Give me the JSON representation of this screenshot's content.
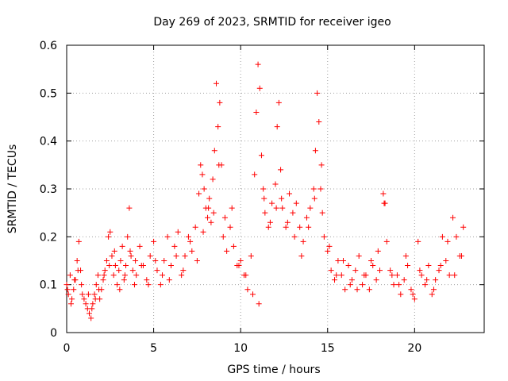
{
  "chart_data": {
    "type": "scatter",
    "title": "Day 269 of 2023, SRMTID for receiver igeo",
    "xlabel": "GPS time / hours",
    "ylabel": "SRMTID / TECUs",
    "xlim": [
      0,
      24
    ],
    "ylim": [
      0,
      0.6
    ],
    "xticks": [
      0,
      5,
      10,
      15,
      20
    ],
    "yticks": [
      0,
      0.1,
      0.2,
      0.3,
      0.4,
      0.5,
      0.6
    ],
    "xtick_labels": [
      "0",
      "5",
      "10",
      "15",
      "20"
    ],
    "ytick_labels": [
      "0",
      "0.1",
      "0.2",
      "0.3",
      "0.4",
      "0.5",
      "0.6"
    ],
    "grid": true,
    "marker": "+",
    "color": "#ff0000",
    "series": [
      {
        "name": "SRMTID",
        "x": [
          0.0,
          0.1,
          0.2,
          0.3,
          0.4,
          0.5,
          0.6,
          0.7,
          0.8,
          0.9,
          1.0,
          1.1,
          1.2,
          1.3,
          1.4,
          1.5,
          1.6,
          1.7,
          1.8,
          1.9,
          2.0,
          2.1,
          2.2,
          2.3,
          2.4,
          2.5,
          2.6,
          2.7,
          2.8,
          2.9,
          3.0,
          3.1,
          3.2,
          3.3,
          3.4,
          3.5,
          3.6,
          3.7,
          3.8,
          3.9,
          4.0,
          4.2,
          4.4,
          4.6,
          4.8,
          5.0,
          5.2,
          5.4,
          5.6,
          5.8,
          6.0,
          6.2,
          6.4,
          6.6,
          6.8,
          7.0,
          7.2,
          7.4,
          7.6,
          7.7,
          7.8,
          7.9,
          8.0,
          8.1,
          8.2,
          8.3,
          8.4,
          8.5,
          8.6,
          8.7,
          8.8,
          8.9,
          9.0,
          9.2,
          9.4,
          9.6,
          9.8,
          10.0,
          10.2,
          10.4,
          10.6,
          10.8,
          10.9,
          11.0,
          11.1,
          11.2,
          11.3,
          11.4,
          11.6,
          11.8,
          12.0,
          12.1,
          12.2,
          12.3,
          12.4,
          12.6,
          12.8,
          13.0,
          13.2,
          13.4,
          13.6,
          13.8,
          14.0,
          14.2,
          14.3,
          14.4,
          14.5,
          14.6,
          14.7,
          14.8,
          15.0,
          15.2,
          15.4,
          15.6,
          15.8,
          16.0,
          16.2,
          16.4,
          16.6,
          16.8,
          17.0,
          17.2,
          17.4,
          17.6,
          17.8,
          18.0,
          18.2,
          18.3,
          18.4,
          18.6,
          18.8,
          19.0,
          19.2,
          19.4,
          19.6,
          19.8,
          20.0,
          20.2,
          20.4,
          20.6,
          20.8,
          21.0,
          21.2,
          21.4,
          21.6,
          21.8,
          22.0,
          22.2,
          22.4,
          22.6,
          22.8,
          0.05,
          0.25,
          0.45,
          0.65,
          0.85,
          1.25,
          1.45,
          1.65,
          1.85,
          2.15,
          2.45,
          2.75,
          3.05,
          3.35,
          3.65,
          3.95,
          4.3,
          4.7,
          5.1,
          5.5,
          5.9,
          6.3,
          6.7,
          7.1,
          7.5,
          7.85,
          8.15,
          8.45,
          8.75,
          9.1,
          9.5,
          9.9,
          10.3,
          10.7,
          11.05,
          11.35,
          11.7,
          12.05,
          12.35,
          12.7,
          13.1,
          13.5,
          13.9,
          14.25,
          14.65,
          15.1,
          15.5,
          15.9,
          16.3,
          16.7,
          17.1,
          17.5,
          17.9,
          18.25,
          18.7,
          19.1,
          19.5,
          19.9,
          20.3,
          20.7,
          21.1,
          21.5,
          21.9,
          22.3,
          22.7
        ],
        "y": [
          0.1,
          0.08,
          0.12,
          0.07,
          0.09,
          0.11,
          0.15,
          0.19,
          0.13,
          0.08,
          0.07,
          0.06,
          0.05,
          0.04,
          0.03,
          0.06,
          0.08,
          0.1,
          0.12,
          0.07,
          0.09,
          0.11,
          0.13,
          0.15,
          0.2,
          0.21,
          0.16,
          0.12,
          0.14,
          0.1,
          0.13,
          0.15,
          0.18,
          0.11,
          0.14,
          0.2,
          0.26,
          0.16,
          0.13,
          0.1,
          0.12,
          0.18,
          0.14,
          0.11,
          0.16,
          0.19,
          0.13,
          0.1,
          0.15,
          0.2,
          0.14,
          0.18,
          0.21,
          0.12,
          0.16,
          0.2,
          0.17,
          0.22,
          0.29,
          0.35,
          0.33,
          0.3,
          0.26,
          0.24,
          0.28,
          0.23,
          0.32,
          0.38,
          0.52,
          0.43,
          0.48,
          0.35,
          0.2,
          0.17,
          0.22,
          0.18,
          0.14,
          0.15,
          0.12,
          0.09,
          0.16,
          0.33,
          0.46,
          0.56,
          0.51,
          0.37,
          0.3,
          0.25,
          0.22,
          0.27,
          0.31,
          0.43,
          0.48,
          0.34,
          0.26,
          0.22,
          0.29,
          0.25,
          0.27,
          0.22,
          0.19,
          0.24,
          0.26,
          0.3,
          0.38,
          0.5,
          0.44,
          0.3,
          0.25,
          0.2,
          0.17,
          0.13,
          0.11,
          0.15,
          0.12,
          0.09,
          0.14,
          0.11,
          0.13,
          0.16,
          0.1,
          0.12,
          0.09,
          0.14,
          0.11,
          0.13,
          0.29,
          0.27,
          0.19,
          0.13,
          0.1,
          0.12,
          0.08,
          0.11,
          0.14,
          0.09,
          0.07,
          0.19,
          0.12,
          0.1,
          0.14,
          0.08,
          0.11,
          0.13,
          0.2,
          0.15,
          0.12,
          0.24,
          0.2,
          0.16,
          0.22,
          0.09,
          0.06,
          0.11,
          0.13,
          0.1,
          0.08,
          0.05,
          0.07,
          0.09,
          0.12,
          0.14,
          0.17,
          0.09,
          0.12,
          0.17,
          0.15,
          0.14,
          0.1,
          0.15,
          0.12,
          0.11,
          0.16,
          0.13,
          0.19,
          0.15,
          0.21,
          0.26,
          0.25,
          0.35,
          0.24,
          0.26,
          0.14,
          0.12,
          0.08,
          0.06,
          0.28,
          0.23,
          0.26,
          0.28,
          0.23,
          0.2,
          0.16,
          0.22,
          0.28,
          0.35,
          0.18,
          0.12,
          0.15,
          0.1,
          0.09,
          0.12,
          0.15,
          0.17,
          0.27,
          0.12,
          0.1,
          0.16,
          0.08,
          0.13,
          0.11,
          0.09,
          0.14,
          0.19,
          0.12,
          0.16
        ]
      }
    ]
  }
}
